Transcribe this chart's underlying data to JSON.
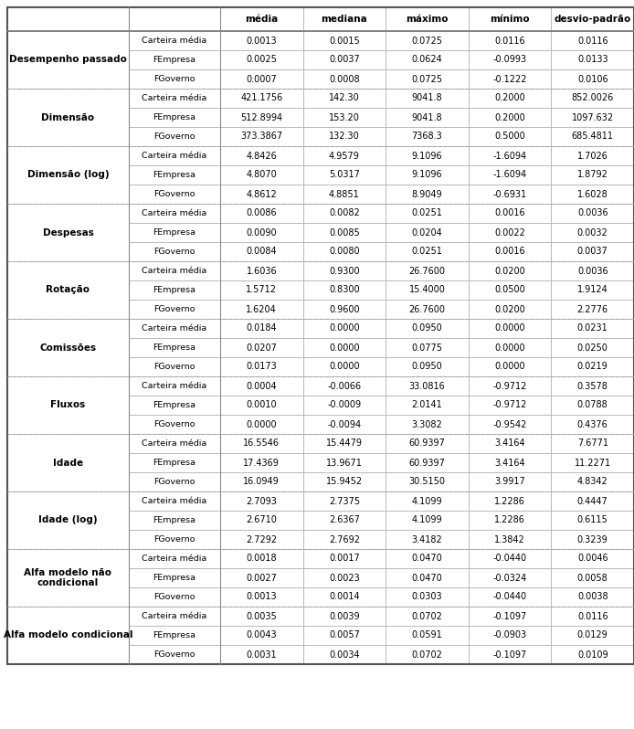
{
  "groups": [
    {
      "label": "Desempenho passado",
      "rows": [
        [
          "Carteira média",
          "0.0013",
          "0.0015",
          "0.0725",
          "0.0116",
          "0.0116"
        ],
        [
          "FEmpresa",
          "0.0025",
          "0.0037",
          "0.0624",
          "-0.0993",
          "0.0133"
        ],
        [
          "FGoverno",
          "0.0007",
          "0.0008",
          "0.0725",
          "-0.1222",
          "0.0106"
        ]
      ]
    },
    {
      "label": "Dimensão",
      "rows": [
        [
          "Carteira média",
          "421.1756",
          "142.30",
          "9041.8",
          "0.2000",
          "852.0026"
        ],
        [
          "FEmpresa",
          "512.8994",
          "153.20",
          "9041.8",
          "0.2000",
          "1097.632"
        ],
        [
          "FGoverno",
          "373.3867",
          "132.30",
          "7368.3",
          "0.5000",
          "685.4811"
        ]
      ]
    },
    {
      "label": "Dimensão (log)",
      "rows": [
        [
          "Carteira média",
          "4.8426",
          "4.9579",
          "9.1096",
          "-1.6094",
          "1.7026"
        ],
        [
          "FEmpresa",
          "4.8070",
          "5.0317",
          "9.1096",
          "-1.6094",
          "1.8792"
        ],
        [
          "FGoverno",
          "4.8612",
          "4.8851",
          "8.9049",
          "-0.6931",
          "1.6028"
        ]
      ]
    },
    {
      "label": "Despesas",
      "rows": [
        [
          "Carteira média",
          "0.0086",
          "0.0082",
          "0.0251",
          "0.0016",
          "0.0036"
        ],
        [
          "FEmpresa",
          "0.0090",
          "0.0085",
          "0.0204",
          "0.0022",
          "0.0032"
        ],
        [
          "FGoverno",
          "0.0084",
          "0.0080",
          "0.0251",
          "0.0016",
          "0.0037"
        ]
      ]
    },
    {
      "label": "Rotação",
      "rows": [
        [
          "Carteira média",
          "1.6036",
          "0.9300",
          "26.7600",
          "0.0200",
          "0.0036"
        ],
        [
          "FEmpresa",
          "1.5712",
          "0.8300",
          "15.4000",
          "0.0500",
          "1.9124"
        ],
        [
          "FGoverno",
          "1.6204",
          "0.9600",
          "26.7600",
          "0.0200",
          "2.2776"
        ]
      ]
    },
    {
      "label": "Comissões",
      "rows": [
        [
          "Carteira média",
          "0.0184",
          "0.0000",
          "0.0950",
          "0.0000",
          "0.0231"
        ],
        [
          "FEmpresa",
          "0.0207",
          "0.0000",
          "0.0775",
          "0.0000",
          "0.0250"
        ],
        [
          "FGoverno",
          "0.0173",
          "0.0000",
          "0.0950",
          "0.0000",
          "0.0219"
        ]
      ]
    },
    {
      "label": "Fluxos",
      "rows": [
        [
          "Carteira média",
          "0.0004",
          "-0.0066",
          "33.0816",
          "-0.9712",
          "0.3578"
        ],
        [
          "FEmpresa",
          "0.0010",
          "-0.0009",
          "2.0141",
          "-0.9712",
          "0.0788"
        ],
        [
          "FGoverno",
          "0.0000",
          "-0.0094",
          "3.3082",
          "-0.9542",
          "0.4376"
        ]
      ]
    },
    {
      "label": "Idade",
      "rows": [
        [
          "Carteira média",
          "16.5546",
          "15.4479",
          "60.9397",
          "3.4164",
          "7.6771"
        ],
        [
          "FEmpresa",
          "17.4369",
          "13.9671",
          "60.9397",
          "3.4164",
          "11.2271"
        ],
        [
          "FGoverno",
          "16.0949",
          "15.9452",
          "30.5150",
          "3.9917",
          "4.8342"
        ]
      ]
    },
    {
      "label": "Idade (log)",
      "rows": [
        [
          "Carteira média",
          "2.7093",
          "2.7375",
          "4.1099",
          "1.2286",
          "0.4447"
        ],
        [
          "FEmpresa",
          "2.6710",
          "2.6367",
          "4.1099",
          "1.2286",
          "0.6115"
        ],
        [
          "FGoverno",
          "2.7292",
          "2.7692",
          "3.4182",
          "1.3842",
          "0.3239"
        ]
      ]
    },
    {
      "label": "Alfa modelo não\ncondicional",
      "rows": [
        [
          "Carteira média",
          "0.0018",
          "0.0017",
          "0.0470",
          "-0.0440",
          "0.0046"
        ],
        [
          "FEmpresa",
          "0.0027",
          "0.0023",
          "0.0470",
          "-0.0324",
          "0.0058"
        ],
        [
          "FGoverno",
          "0.0013",
          "0.0014",
          "0.0303",
          "-0.0440",
          "0.0038"
        ]
      ]
    },
    {
      "label": "Alfa modelo condicional",
      "rows": [
        [
          "Carteira média",
          "0.0035",
          "0.0039",
          "0.0702",
          "-0.1097",
          "0.0116"
        ],
        [
          "FEmpresa",
          "0.0043",
          "0.0057",
          "0.0591",
          "-0.0903",
          "0.0129"
        ],
        [
          "FGoverno",
          "0.0031",
          "0.0034",
          "0.0702",
          "-0.1097",
          "0.0109"
        ]
      ]
    }
  ],
  "col_headers": [
    "média",
    "mediana",
    "máximo",
    "mínimo",
    "desvio-padrão"
  ],
  "text_color": "#000000",
  "border_color": "#aaaaaa",
  "outer_border_color": "#555555"
}
